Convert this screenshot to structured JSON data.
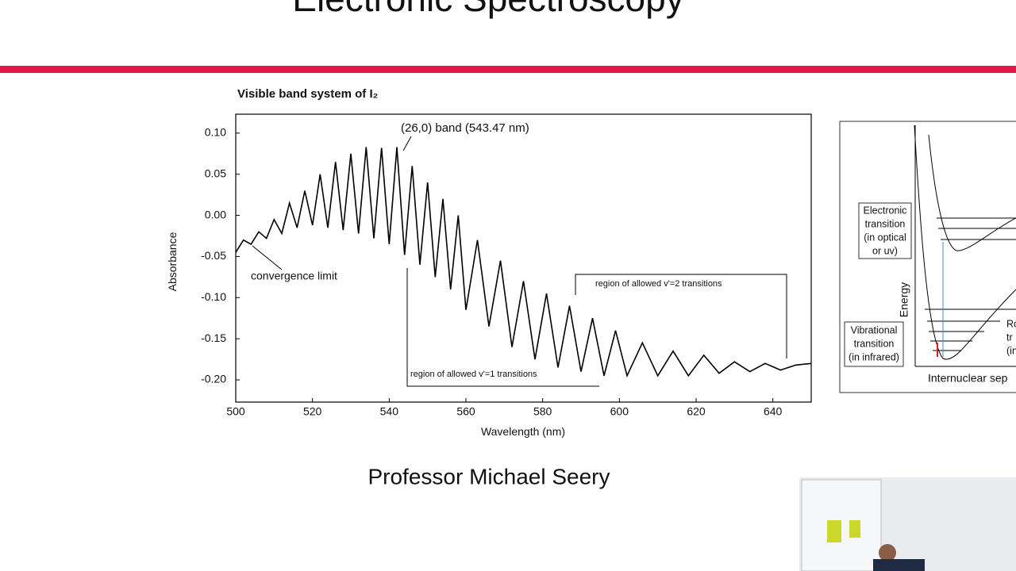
{
  "slide": {
    "title": "Electronic Spectroscopy",
    "presenter": "Professor Michael Seery"
  },
  "chart_data": {
    "type": "line",
    "title": "Visible band system of I₂",
    "x_label": "Wavelength (nm)",
    "y_label": "Absorbance",
    "color": "#000000",
    "x": [
      500,
      502,
      504,
      506,
      508,
      510,
      512,
      514,
      516,
      518,
      520,
      522,
      524,
      526,
      528,
      530,
      532,
      534,
      536,
      538,
      540,
      542,
      544,
      546,
      548,
      550,
      552,
      554,
      556,
      558,
      560,
      563,
      566,
      569,
      572,
      575,
      578,
      581,
      584,
      587,
      590,
      593,
      596,
      599,
      602,
      606,
      610,
      614,
      618,
      622,
      626,
      630,
      634,
      638,
      642,
      646,
      650
    ],
    "values": [
      -0.045,
      -0.03,
      -0.035,
      -0.02,
      -0.028,
      -0.005,
      -0.022,
      0.015,
      -0.015,
      0.03,
      -0.012,
      0.05,
      -0.015,
      0.065,
      -0.018,
      0.075,
      -0.022,
      0.083,
      -0.028,
      0.082,
      -0.035,
      0.083,
      -0.048,
      0.06,
      -0.06,
      0.04,
      -0.075,
      0.02,
      -0.09,
      0.0,
      -0.115,
      -0.03,
      -0.135,
      -0.055,
      -0.16,
      -0.08,
      -0.175,
      -0.095,
      -0.185,
      -0.11,
      -0.19,
      -0.125,
      -0.195,
      -0.14,
      -0.195,
      -0.155,
      -0.195,
      -0.165,
      -0.195,
      -0.17,
      -0.192,
      -0.178,
      -0.19,
      -0.18,
      -0.188,
      -0.182,
      -0.18
    ],
    "xlim": [
      500,
      650
    ],
    "xticks": [
      500,
      520,
      540,
      560,
      580,
      600,
      620,
      640
    ],
    "ylim": [
      -0.227,
      0.123
    ],
    "yticks": [
      {
        "value": 0.1,
        "label": "0.10"
      },
      {
        "value": 0.05,
        "label": "0.05"
      },
      {
        "value": 0,
        "label": "0.00"
      },
      {
        "value": -0.05,
        "label": "-0.05"
      },
      {
        "value": -0.1,
        "label": "-0.10"
      },
      {
        "value": -0.15,
        "label": "-0.15"
      },
      {
        "value": -0.2,
        "label": "-0.20"
      }
    ],
    "annotations": [
      "(26,0) band (543.47 nm)",
      "convergence limit",
      "region of allowed v'=2 transitions",
      "region of allowed v'=1 transitions"
    ]
  },
  "diagram": {
    "electronic": [
      "Electronic",
      "transition",
      "(in optical",
      "or uv)"
    ],
    "energy": "Energy",
    "vibrational": [
      "Vibrational",
      "transition",
      "(in infrared)"
    ],
    "rotational": [
      "Ro",
      "tr",
      "(in r"
    ],
    "x_label": "Internuclear sep"
  }
}
